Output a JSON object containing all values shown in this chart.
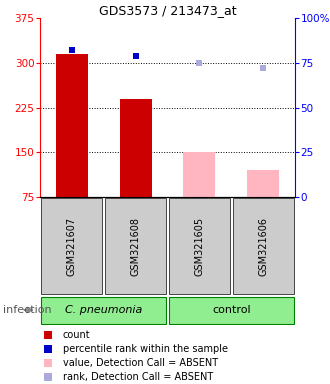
{
  "title": "GDS3573 / 213473_at",
  "samples": [
    "GSM321607",
    "GSM321608",
    "GSM321605",
    "GSM321606"
  ],
  "count_values": [
    315,
    240,
    150,
    120
  ],
  "count_absent": [
    false,
    false,
    true,
    true
  ],
  "percentile_pct_present": [
    82,
    79
  ],
  "percentile_present_idx": [
    0,
    1
  ],
  "rank_absent_pct": [
    75,
    72
  ],
  "rank_absent_idx": [
    2,
    3
  ],
  "ylim_left": [
    75,
    375
  ],
  "ylim_right": [
    0,
    100
  ],
  "yticks_left": [
    75,
    150,
    225,
    300,
    375
  ],
  "yticks_right": [
    0,
    25,
    50,
    75,
    100
  ],
  "ytick_right_labels": [
    "0",
    "25",
    "50",
    "75",
    "100%"
  ],
  "bar_width": 0.5,
  "count_color_present": "#CC0000",
  "count_color_absent": "#FFB6C1",
  "percentile_color_present": "#0000CC",
  "rank_color_absent": "#AAAADD",
  "group_color": "#90EE90",
  "group_border": "#008000",
  "sample_box_color": "#CCCCCC",
  "legend_items": [
    {
      "label": "count",
      "color": "#CC0000"
    },
    {
      "label": "percentile rank within the sample",
      "color": "#0000CC"
    },
    {
      "label": "value, Detection Call = ABSENT",
      "color": "#FFB6C1"
    },
    {
      "label": "rank, Detection Call = ABSENT",
      "color": "#AAAADD"
    }
  ],
  "infection_label": "infection"
}
